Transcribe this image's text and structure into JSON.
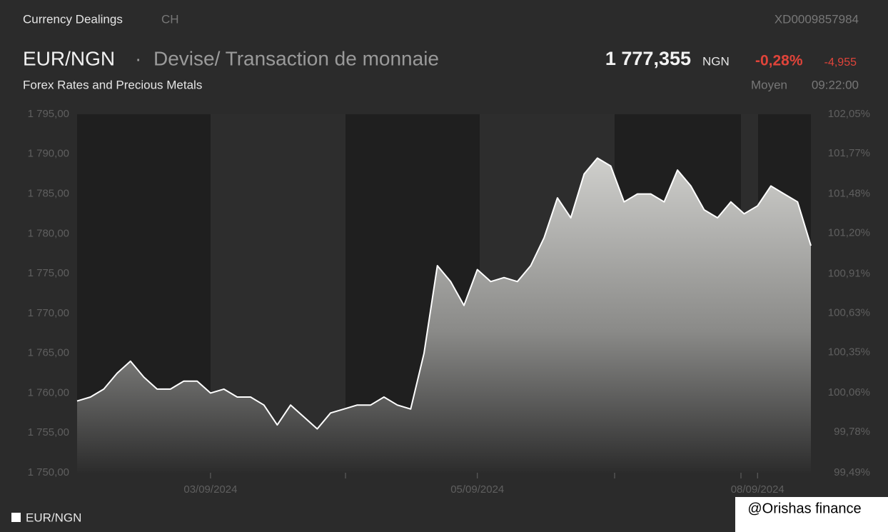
{
  "header": {
    "source": "Currency Dealings",
    "country": "CH",
    "isin": "XD0009857984",
    "symbol": "EUR/NGN",
    "separator": "·",
    "name": "Devise/ Transaction de monnaie",
    "price": "1 777,355",
    "currency": "NGN",
    "change_pct": "-0,28%",
    "change_abs": "-4,955",
    "market": "Forex Rates and Precious Metals",
    "price_type": "Moyen",
    "time": "09:22:00",
    "watermark": "@Orishas finance"
  },
  "chart_data": {
    "type": "area",
    "x": [
      0,
      4,
      8,
      12,
      16,
      20,
      24,
      28,
      32,
      36,
      40,
      44,
      48,
      52,
      56,
      60,
      64,
      68,
      72,
      76,
      80,
      84,
      88,
      92,
      96,
      100,
      104,
      108,
      112,
      116,
      120,
      124,
      128,
      132,
      136,
      140,
      144,
      148,
      152,
      156,
      160,
      164,
      168,
      172,
      176,
      180,
      184,
      188,
      192,
      196,
      200,
      204,
      208,
      212,
      216,
      220
    ],
    "series": [
      {
        "name": "EUR/NGN",
        "color": "#ffffff",
        "values": [
          1759,
          1759.5,
          1760.5,
          1762.5,
          1764,
          1762,
          1760.5,
          1760.5,
          1761.5,
          1761.5,
          1760,
          1760.5,
          1759.5,
          1759.5,
          1758.5,
          1756,
          1758.5,
          1757,
          1755.5,
          1757.5,
          1758,
          1758.5,
          1758.5,
          1759.5,
          1758.5,
          1758,
          1765,
          1776,
          1774,
          1771,
          1775.5,
          1774,
          1774.5,
          1774,
          1776,
          1779.5,
          1784.5,
          1782,
          1787.5,
          1789.5,
          1788.5,
          1784,
          1785,
          1785,
          1784,
          1788,
          1786,
          1783,
          1782,
          1784,
          1782.5,
          1783.5,
          1786,
          1785,
          1784,
          1778.5
        ]
      }
    ],
    "xlim": [
      0,
      220
    ],
    "xticks": [
      {
        "value": 40,
        "label": "03/09/2024"
      },
      {
        "value": 120,
        "label": "05/09/2024"
      },
      {
        "value": 204,
        "label": "08/09/2024"
      }
    ],
    "ylim": [
      1750,
      1795
    ],
    "yticks": [
      {
        "value": 1795,
        "label": "1 795,00"
      },
      {
        "value": 1790,
        "label": "1 790,00"
      },
      {
        "value": 1785,
        "label": "1 785,00"
      },
      {
        "value": 1780,
        "label": "1 780,00"
      },
      {
        "value": 1775,
        "label": "1 775,00"
      },
      {
        "value": 1770,
        "label": "1 770,00"
      },
      {
        "value": 1765,
        "label": "1 765,00"
      },
      {
        "value": 1760,
        "label": "1 760,00"
      },
      {
        "value": 1755,
        "label": "1 755,00"
      },
      {
        "value": 1750,
        "label": "1 750,00"
      }
    ],
    "y2lim": [
      99.49,
      102.05
    ],
    "y2ticks": [
      {
        "value": 102.05,
        "label": "102,05%"
      },
      {
        "value": 101.77,
        "label": "101,77%"
      },
      {
        "value": 101.48,
        "label": "101,48%"
      },
      {
        "value": 101.2,
        "label": "101,20%"
      },
      {
        "value": 100.91,
        "label": "100,91%"
      },
      {
        "value": 100.63,
        "label": "100,63%"
      },
      {
        "value": 100.35,
        "label": "100,35%"
      },
      {
        "value": 100.06,
        "label": "100,06%"
      },
      {
        "value": 99.78,
        "label": "99,78%"
      },
      {
        "value": 99.49,
        "label": "99,49%"
      }
    ]
  }
}
